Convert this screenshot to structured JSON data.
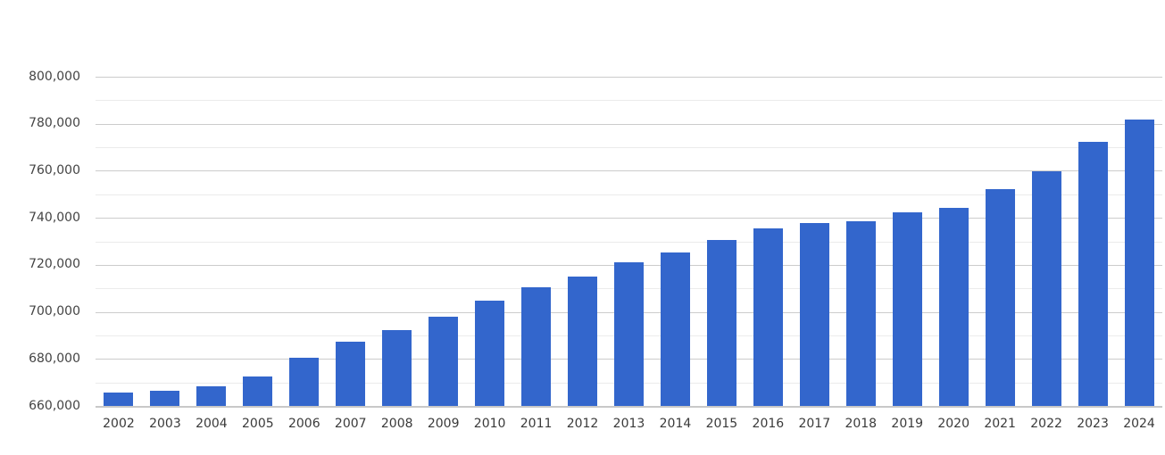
{
  "chart_data": {
    "type": "bar",
    "title": "",
    "xlabel": "",
    "ylabel": "",
    "legend_position": "none",
    "grid": "on",
    "ylim": [
      660000,
      800000
    ],
    "y_major_tick_step": 20000,
    "y_minor_tick_step": 10000,
    "y_tick_labels": [
      "660,000",
      "680,000",
      "700,000",
      "720,000",
      "740,000",
      "760,000",
      "780,000",
      "800,000"
    ],
    "categories": [
      "2002",
      "2003",
      "2004",
      "2005",
      "2006",
      "2007",
      "2008",
      "2009",
      "2010",
      "2011",
      "2012",
      "2013",
      "2014",
      "2015",
      "2016",
      "2017",
      "2018",
      "2019",
      "2020",
      "2021",
      "2022",
      "2023",
      "2024"
    ],
    "values": [
      665800,
      666600,
      668700,
      672700,
      680700,
      687600,
      692400,
      698000,
      704800,
      710800,
      715200,
      721200,
      725600,
      730800,
      735800,
      737900,
      738800,
      742400,
      744500,
      752500,
      760000,
      772400,
      782100
    ]
  },
  "style": {
    "bar_color": "#3366cc",
    "major_grid_color": "#cccccc",
    "minor_grid_color": "#ebebeb",
    "baseline_color": "#c8c8c8",
    "y_label_color": "#444444",
    "x_label_color": "#3a3a3a",
    "background_color": "#ffffff"
  }
}
